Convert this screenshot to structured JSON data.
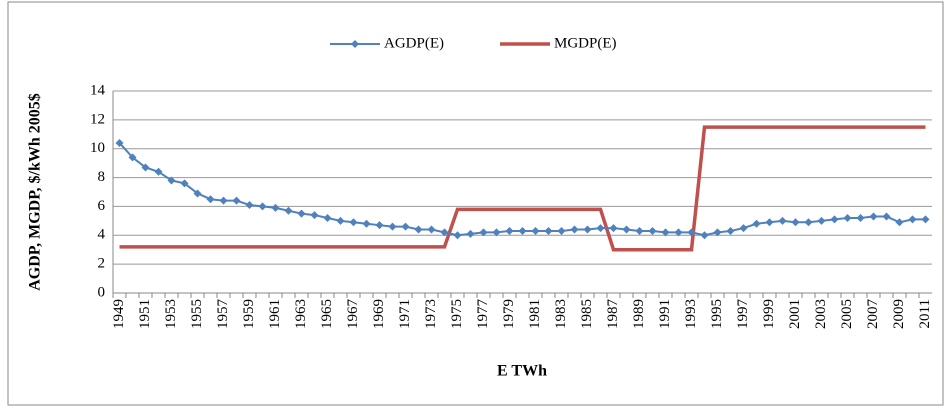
{
  "chart_data": {
    "type": "line",
    "ylabel": "AGDP, MGDP, $/kWh 2005$",
    "xlabel": "E TWh",
    "categories": [
      "1949",
      null,
      "1951",
      null,
      "1953",
      null,
      "1955",
      null,
      "1957",
      null,
      "1959",
      null,
      "1961",
      null,
      "1963",
      null,
      "1965",
      null,
      "1967",
      null,
      "1969",
      null,
      "1971",
      null,
      "1973",
      null,
      "1975",
      null,
      "1977",
      null,
      "1979",
      null,
      "1981",
      null,
      "1983",
      null,
      "1985",
      null,
      "1987",
      null,
      "1989",
      null,
      "1991",
      null,
      "1993",
      null,
      "1995",
      null,
      "1997",
      null,
      "1999",
      null,
      "2001",
      null,
      "2003",
      null,
      "2005",
      null,
      "2007",
      null,
      "2009",
      null,
      "2011"
    ],
    "series": [
      {
        "name": "AGDP(E)",
        "color": "#4f81bd",
        "marker": "diamond",
        "values": [
          10.4,
          9.4,
          8.7,
          8.4,
          7.8,
          7.6,
          6.9,
          6.5,
          6.4,
          6.4,
          6.1,
          6.0,
          5.9,
          5.7,
          5.5,
          5.4,
          5.2,
          5.0,
          4.9,
          4.8,
          4.7,
          4.6,
          4.6,
          4.4,
          4.4,
          4.2,
          4.0,
          4.1,
          4.2,
          4.2,
          4.3,
          4.3,
          4.3,
          4.3,
          4.3,
          4.4,
          4.4,
          4.5,
          4.5,
          4.4,
          4.3,
          4.3,
          4.2,
          4.2,
          4.2,
          4.0,
          4.2,
          4.3,
          4.5,
          4.8,
          4.9,
          5.0,
          4.9,
          4.9,
          5.0,
          5.1,
          5.2,
          5.2,
          5.3,
          5.3,
          4.9,
          5.1,
          5.1
        ]
      },
      {
        "name": "MGDP(E)",
        "color": "#c0504d",
        "marker": "none",
        "values": [
          3.2,
          3.2,
          3.2,
          3.2,
          3.2,
          3.2,
          3.2,
          3.2,
          3.2,
          3.2,
          3.2,
          3.2,
          3.2,
          3.2,
          3.2,
          3.2,
          3.2,
          3.2,
          3.2,
          3.2,
          3.2,
          3.2,
          3.2,
          3.2,
          3.2,
          3.2,
          5.8,
          5.8,
          5.8,
          5.8,
          5.8,
          5.8,
          5.8,
          5.8,
          5.8,
          5.8,
          5.8,
          5.8,
          3.0,
          3.0,
          3.0,
          3.0,
          3.0,
          3.0,
          3.0,
          11.5,
          11.5,
          11.5,
          11.5,
          11.5,
          11.5,
          11.5,
          11.5,
          11.5,
          11.5,
          11.5,
          11.5,
          11.5,
          11.5,
          11.5,
          11.5,
          11.5,
          11.5
        ]
      }
    ],
    "ylim": [
      0,
      14
    ],
    "yticks": [
      0,
      2,
      4,
      6,
      8,
      10,
      12,
      14
    ],
    "grid": true,
    "legend": "top"
  }
}
